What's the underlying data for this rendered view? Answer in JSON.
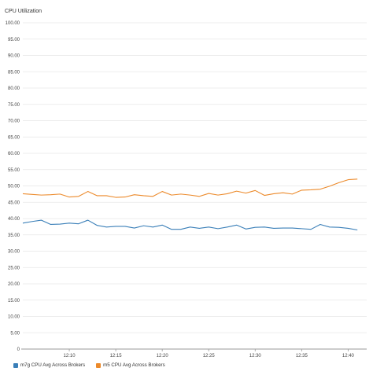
{
  "chart_data": {
    "type": "line",
    "title": "CPU Utilization",
    "ylim": [
      0,
      100
    ],
    "yticks": [
      0,
      5,
      10,
      15,
      20,
      25,
      30,
      35,
      40,
      45,
      50,
      55,
      60,
      65,
      70,
      75,
      80,
      85,
      90,
      95,
      100
    ],
    "ytick_labels": [
      "0",
      "5.00",
      "10.00",
      "15.00",
      "20.00",
      "25.00",
      "30.00",
      "35.00",
      "40.00",
      "45.00",
      "50.00",
      "55.00",
      "60.00",
      "65.00",
      "70.00",
      "75.00",
      "80.00",
      "85.00",
      "90.00",
      "95.00",
      "100.00"
    ],
    "xlim": [
      "12:05",
      "12:42"
    ],
    "xticks": [
      "12:10",
      "12:15",
      "12:20",
      "12:25",
      "12:30",
      "12:35",
      "12:40"
    ],
    "x": [
      "12:05",
      "12:06",
      "12:07",
      "12:08",
      "12:09",
      "12:10",
      "12:11",
      "12:12",
      "12:13",
      "12:14",
      "12:15",
      "12:16",
      "12:17",
      "12:18",
      "12:19",
      "12:20",
      "12:21",
      "12:22",
      "12:23",
      "12:24",
      "12:25",
      "12:26",
      "12:27",
      "12:28",
      "12:29",
      "12:30",
      "12:31",
      "12:32",
      "12:33",
      "12:34",
      "12:35",
      "12:36",
      "12:37",
      "12:38",
      "12:39",
      "12:40",
      "12:41"
    ],
    "series": [
      {
        "name": "m7g CPU Avg Across Brokers",
        "color": "#3a7fb8",
        "values": [
          38.6,
          39.1,
          39.5,
          38.2,
          38.3,
          38.6,
          38.4,
          39.5,
          37.9,
          37.4,
          37.6,
          37.6,
          37.1,
          37.8,
          37.4,
          38.0,
          36.7,
          36.7,
          37.4,
          37.0,
          37.4,
          36.9,
          37.4,
          38.0,
          36.8,
          37.3,
          37.4,
          37.0,
          37.1,
          37.1,
          36.9,
          36.7,
          38.2,
          37.4,
          37.3,
          37.0,
          36.5
        ]
      },
      {
        "name": "m5 CPU Avg Across Brokers",
        "color": "#ec8a2b",
        "values": [
          47.6,
          47.4,
          47.2,
          47.3,
          47.5,
          46.6,
          46.8,
          48.3,
          47.0,
          47.0,
          46.5,
          46.6,
          47.3,
          47.0,
          46.8,
          48.3,
          47.2,
          47.5,
          47.2,
          46.8,
          47.7,
          47.2,
          47.6,
          48.4,
          47.8,
          48.6,
          47.1,
          47.6,
          47.9,
          47.5,
          48.7,
          48.8,
          49.0,
          49.9,
          51.0,
          51.9,
          52.1
        ]
      }
    ],
    "grid": true,
    "legend": "bottom-left"
  }
}
